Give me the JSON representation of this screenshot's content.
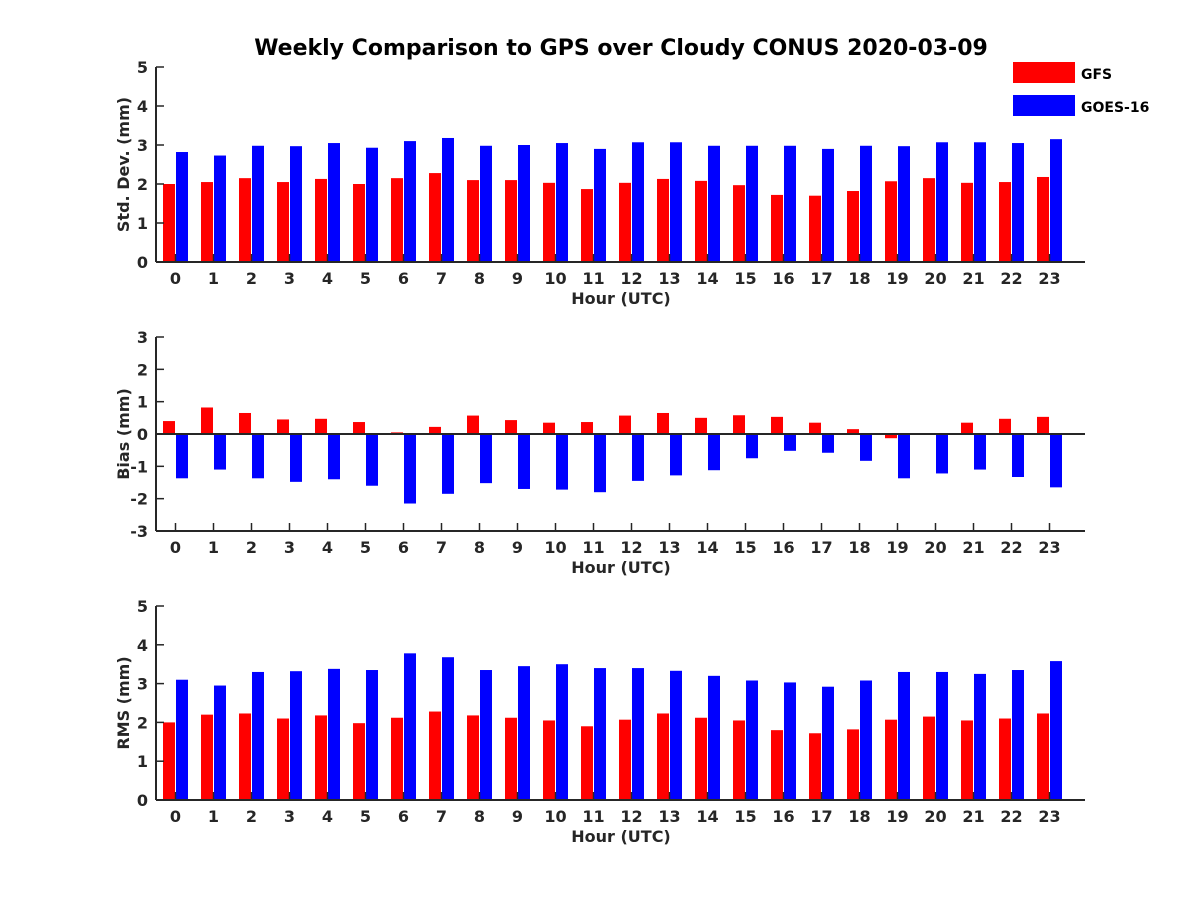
{
  "figure_title": "Weekly Comparison to GPS over Cloudy CONUS 2020-03-09",
  "legend": [
    {
      "label": "GFS",
      "color": "#ff0000"
    },
    {
      "label": "GOES-16",
      "color": "#0000ff"
    }
  ],
  "chart_data": [
    {
      "type": "bar",
      "title": "",
      "xlabel": "Hour (UTC)",
      "ylabel": "Std. Dev. (mm)",
      "ylim": [
        0,
        5
      ],
      "yticks": [
        0,
        1,
        2,
        3,
        4,
        5
      ],
      "categories": [
        "0",
        "1",
        "2",
        "3",
        "4",
        "5",
        "6",
        "7",
        "8",
        "9",
        "10",
        "11",
        "12",
        "13",
        "14",
        "15",
        "16",
        "17",
        "18",
        "19",
        "20",
        "21",
        "22",
        "23"
      ],
      "series": [
        {
          "name": "GFS",
          "color": "#ff0000",
          "values": [
            2.0,
            2.05,
            2.15,
            2.05,
            2.13,
            2.0,
            2.15,
            2.28,
            2.1,
            2.1,
            2.03,
            1.87,
            2.03,
            2.13,
            2.08,
            1.97,
            1.72,
            1.7,
            1.82,
            2.07,
            2.15,
            2.03,
            2.05,
            2.18
          ]
        },
        {
          "name": "GOES-16",
          "color": "#0000ff",
          "values": [
            2.82,
            2.73,
            2.98,
            2.97,
            3.05,
            2.93,
            3.1,
            3.18,
            2.98,
            3.0,
            3.05,
            2.9,
            3.07,
            3.07,
            2.98,
            2.98,
            2.98,
            2.9,
            2.98,
            2.97,
            3.07,
            3.07,
            3.05,
            3.15
          ]
        }
      ],
      "grid": false
    },
    {
      "type": "bar",
      "title": "",
      "xlabel": "Hour (UTC)",
      "ylabel": "Bias (mm)",
      "ylim": [
        -3,
        3
      ],
      "yticks": [
        -3,
        -2,
        -1,
        0,
        1,
        2,
        3
      ],
      "categories": [
        "0",
        "1",
        "2",
        "3",
        "4",
        "5",
        "6",
        "7",
        "8",
        "9",
        "10",
        "11",
        "12",
        "13",
        "14",
        "15",
        "16",
        "17",
        "18",
        "19",
        "20",
        "21",
        "22",
        "23"
      ],
      "series": [
        {
          "name": "GFS",
          "color": "#ff0000",
          "values": [
            0.4,
            0.82,
            0.65,
            0.45,
            0.47,
            0.37,
            0.05,
            0.22,
            0.57,
            0.43,
            0.35,
            0.37,
            0.57,
            0.65,
            0.5,
            0.58,
            0.53,
            0.35,
            0.15,
            -0.13,
            0.03,
            0.35,
            0.47,
            0.53
          ]
        },
        {
          "name": "GOES-16",
          "color": "#0000ff",
          "values": [
            -1.37,
            -1.1,
            -1.37,
            -1.48,
            -1.4,
            -1.6,
            -2.15,
            -1.85,
            -1.52,
            -1.7,
            -1.72,
            -1.8,
            -1.45,
            -1.28,
            -1.12,
            -0.75,
            -0.52,
            -0.58,
            -0.83,
            -1.37,
            -1.22,
            -1.1,
            -1.33,
            -1.65
          ]
        }
      ],
      "grid": false
    },
    {
      "type": "bar",
      "title": "",
      "xlabel": "Hour (UTC)",
      "ylabel": "RMS (mm)",
      "ylim": [
        0,
        5
      ],
      "yticks": [
        0,
        1,
        2,
        3,
        4,
        5
      ],
      "categories": [
        "0",
        "1",
        "2",
        "3",
        "4",
        "5",
        "6",
        "7",
        "8",
        "9",
        "10",
        "11",
        "12",
        "13",
        "14",
        "15",
        "16",
        "17",
        "18",
        "19",
        "20",
        "21",
        "22",
        "23"
      ],
      "series": [
        {
          "name": "GFS",
          "color": "#ff0000",
          "values": [
            2.0,
            2.2,
            2.23,
            2.1,
            2.18,
            1.98,
            2.12,
            2.28,
            2.18,
            2.12,
            2.05,
            1.9,
            2.07,
            2.23,
            2.12,
            2.05,
            1.8,
            1.72,
            1.82,
            2.07,
            2.15,
            2.05,
            2.1,
            2.23
          ]
        },
        {
          "name": "GOES-16",
          "color": "#0000ff",
          "values": [
            3.1,
            2.95,
            3.3,
            3.32,
            3.38,
            3.35,
            3.78,
            3.68,
            3.35,
            3.45,
            3.5,
            3.4,
            3.4,
            3.33,
            3.2,
            3.08,
            3.03,
            2.92,
            3.08,
            3.3,
            3.3,
            3.25,
            3.35,
            3.58
          ]
        }
      ],
      "grid": false
    }
  ]
}
